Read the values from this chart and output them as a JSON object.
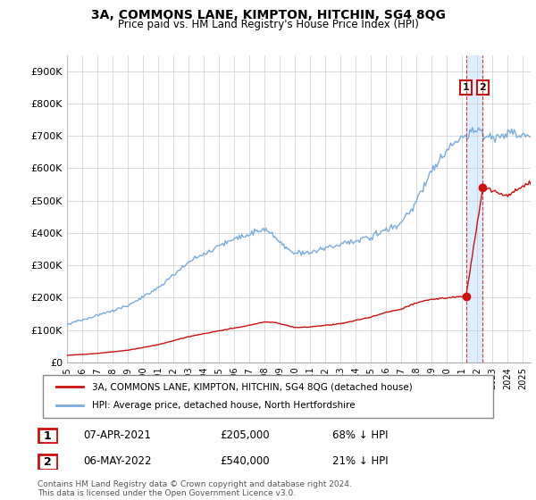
{
  "title": "3A, COMMONS LANE, KIMPTON, HITCHIN, SG4 8QG",
  "subtitle": "Price paid vs. HM Land Registry's House Price Index (HPI)",
  "ylim": [
    0,
    950000
  ],
  "yticks": [
    0,
    100000,
    200000,
    300000,
    400000,
    500000,
    600000,
    700000,
    800000,
    900000
  ],
  "ytick_labels": [
    "£0",
    "£100K",
    "£200K",
    "£300K",
    "£400K",
    "£500K",
    "£600K",
    "£700K",
    "£800K",
    "£900K"
  ],
  "hpi_color": "#7aaddc",
  "price_color": "#cc1111",
  "annotation_color": "#cc1111",
  "vline_color": "#cc1111",
  "shade_color": "#ddeeff",
  "background_color": "#ffffff",
  "grid_color": "#cccccc",
  "legend_label_price": "3A, COMMONS LANE, KIMPTON, HITCHIN, SG4 8QG (detached house)",
  "legend_label_hpi": "HPI: Average price, detached house, North Hertfordshire",
  "transaction1_label": "1",
  "transaction1_date": "07-APR-2021",
  "transaction1_price": "£205,000",
  "transaction1_hpi": "68% ↓ HPI",
  "transaction2_label": "2",
  "transaction2_date": "06-MAY-2022",
  "transaction2_price": "£540,000",
  "transaction2_hpi": "21% ↓ HPI",
  "footer": "Contains HM Land Registry data © Crown copyright and database right 2024.\nThis data is licensed under the Open Government Licence v3.0.",
  "marker1_x": 2021.25,
  "marker1_y": 205000,
  "marker2_x": 2022.35,
  "marker2_y": 540000,
  "xmin": 1995.0,
  "xmax": 2025.5
}
